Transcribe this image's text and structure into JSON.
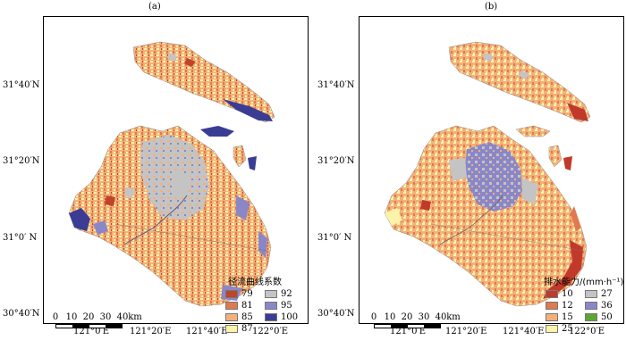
{
  "panels": [
    {
      "label": "(a)",
      "legend_title": "径流曲线系数",
      "legend": [
        {
          "value": "79",
          "color": "#c0432a"
        },
        {
          "value": "92",
          "color": "#c4c4c4"
        },
        {
          "value": "81",
          "color": "#e0794f"
        },
        {
          "value": "95",
          "color": "#8a87c9"
        },
        {
          "value": "85",
          "color": "#f4b079"
        },
        {
          "value": "100",
          "color": "#3a3d93"
        },
        {
          "value": "87",
          "color": "#fbf3a8"
        }
      ]
    },
    {
      "label": "(b)",
      "legend_title": "排水能力/(mm·h⁻¹)",
      "legend": [
        {
          "value": "10",
          "color": "#c0392b"
        },
        {
          "value": "27",
          "color": "#c4c4c4"
        },
        {
          "value": "12",
          "color": "#e0794f"
        },
        {
          "value": "36",
          "color": "#8a87c9"
        },
        {
          "value": "15",
          "color": "#f4b079"
        },
        {
          "value": "50",
          "color": "#5aa830"
        },
        {
          "value": "25",
          "color": "#fbf3a8"
        }
      ]
    }
  ],
  "lat_labels": [
    "31°40′N",
    "31°20′N",
    "31°0′ N",
    "30°40′N"
  ],
  "lon_labels": [
    "121°0′E",
    "121°20′E",
    "121°40′E",
    "122°0′E"
  ],
  "scale": {
    "ticks": [
      "0",
      "10",
      "20",
      "30",
      "40"
    ],
    "unit": "km"
  }
}
